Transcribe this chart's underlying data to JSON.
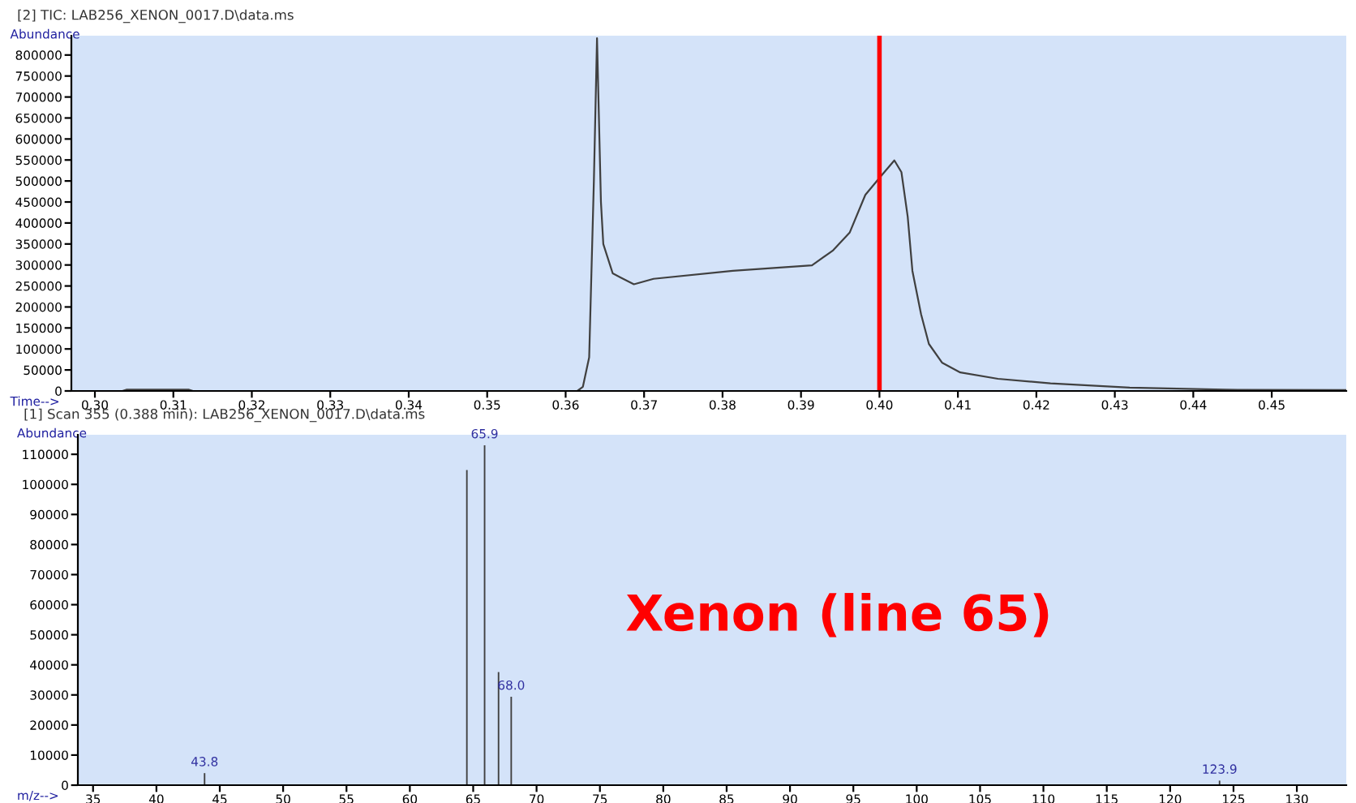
{
  "chart_data": [
    {
      "type": "line",
      "title": "[2] TIC: LAB256_XENON_0017.D\\data.ms",
      "xlabel": "Time-->",
      "ylabel": "Abundance",
      "series": [
        {
          "color": "#404040",
          "x": [
            0.297,
            0.3035,
            0.304,
            0.312,
            0.3125,
            0.3615,
            0.3622,
            0.363,
            0.3636,
            0.364,
            0.3645,
            0.3648,
            0.366,
            0.3687,
            0.3712,
            0.3813,
            0.3914,
            0.3941,
            0.3962,
            0.3982,
            0.4002,
            0.4019,
            0.4028,
            0.4036,
            0.4042,
            0.4053,
            0.4063,
            0.408,
            0.4103,
            0.4151,
            0.4218,
            0.4319,
            0.444,
            0.4595
          ],
          "values": [
            0,
            0,
            3000,
            3000,
            0,
            0,
            10000,
            80000,
            500000,
            840000,
            450000,
            350000,
            280000,
            254000,
            267000,
            286000,
            299000,
            335000,
            377000,
            467000,
            512000,
            549000,
            521000,
            415000,
            286000,
            183000,
            112000,
            67000,
            44000,
            29000,
            18000,
            8000,
            3000,
            2000
          ]
        }
      ],
      "xlim": [
        0.297,
        0.4595
      ],
      "xticks": [
        {
          "value": 0.3,
          "label": "0.30"
        },
        0.31,
        0.32,
        0.33,
        0.34,
        0.35,
        0.36,
        0.37,
        0.38,
        0.39,
        {
          "value": 0.4,
          "label": "0.40"
        },
        0.41,
        0.42,
        0.43,
        0.44,
        0.45
      ],
      "ylim": [
        0,
        846000
      ],
      "yticks": [
        0,
        50000,
        100000,
        150000,
        200000,
        250000,
        300000,
        350000,
        400000,
        450000,
        500000,
        550000,
        600000,
        650000,
        700000,
        750000,
        800000
      ],
      "ref_lines": [
        {
          "axis": "x",
          "value": 0.4,
          "color": "#ff0000"
        }
      ],
      "grid": false,
      "legend": false
    },
    {
      "type": "bar",
      "title": "[1] Scan 355 (0.388 min): LAB256_XENON_0017.D\\data.ms",
      "xlabel": "m/z-->",
      "ylabel": "Abundance",
      "x": [
        43.8,
        45.2,
        64.5,
        65.9,
        67.0,
        68.0,
        123.9
      ],
      "series": [
        {
          "color": "#404040",
          "values": [
            4000,
            null,
            104800,
            113000,
            37600,
            29400,
            1500
          ]
        }
      ],
      "xlim": [
        33.8,
        133.9
      ],
      "xticks": [
        35,
        40,
        45,
        50,
        55,
        60,
        65,
        70,
        75,
        80,
        85,
        90,
        95,
        100,
        105,
        110,
        115,
        120,
        125,
        130
      ],
      "ylim": [
        0,
        116500
      ],
      "yticks": [
        0,
        10000,
        20000,
        30000,
        40000,
        50000,
        60000,
        70000,
        80000,
        90000,
        100000,
        110000
      ],
      "annotations": [
        "Xenon (line 65)",
        {
          "text": "43.8",
          "x": 43.8,
          "y": 4000
        },
        {
          "text": "65.9",
          "x": 65.9,
          "y": 113000
        },
        {
          "text": "68.0",
          "x": 68.0,
          "y": 29400
        },
        {
          "text": "123.9",
          "x": 123.9,
          "y": 1500
        }
      ],
      "grid": false,
      "legend": false
    }
  ]
}
